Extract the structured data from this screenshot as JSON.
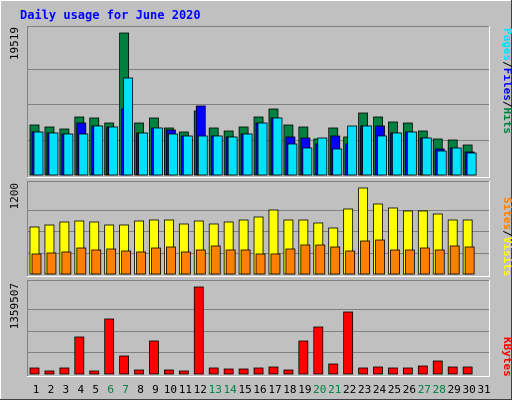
{
  "chart_data": {
    "type": "bar",
    "title": "Daily usage for June 2020",
    "days": [
      "1",
      "2",
      "3",
      "4",
      "5",
      "6",
      "7",
      "8",
      "9",
      "10",
      "11",
      "12",
      "13",
      "14",
      "15",
      "16",
      "17",
      "18",
      "19",
      "20",
      "21",
      "22",
      "23",
      "24",
      "25",
      "26",
      "27",
      "28",
      "29",
      "30",
      "31"
    ],
    "weekend_days": [
      "6",
      "7",
      "13",
      "14",
      "20",
      "21",
      "27",
      "28"
    ],
    "panels": [
      {
        "id": "top",
        "max_label": "19519",
        "ymax": 19519,
        "side_labels": [
          "Pages",
          "Files",
          "Hits"
        ],
        "series": [
          {
            "name": "Hits",
            "color": "#008040",
            "values": [
              6872,
              6648,
              6311,
              7996,
              7776,
              7103,
              19519,
              7108,
              7887,
              6528,
              5872,
              8860,
              6409,
              5982,
              6620,
              7983,
              9096,
              6855,
              6598,
              4939,
              6423,
              5287,
              8476,
              7924,
              7346,
              7106,
              6099,
              4916,
              4850,
              4062,
              null
            ]
          },
          {
            "name": "Files",
            "color": "#0000ff",
            "values": [
              5933,
              5823,
              5599,
              7103,
              6754,
              6534,
              9096,
              5823,
              6528,
              6120,
              5361,
              9544,
              5361,
              5157,
              5669,
              7103,
              7776,
              5174,
              5115,
              4262,
              5361,
              4264,
              6754,
              6753,
              5819,
              5897,
              5051,
              3554,
              3766,
              3221,
              null
            ]
          },
          {
            "name": "Pages",
            "color": "#00e0ff",
            "values": [
              5933,
              5823,
              5599,
              5599,
              6754,
              6534,
              13353,
              5823,
              6528,
              5599,
              5361,
              5361,
              5361,
              5157,
              5669,
              7103,
              7776,
              4262,
              3766,
              5115,
              3554,
              6754,
              6754,
              5299,
              5819,
              5897,
              5051,
              3260,
              3766,
              3054,
              null
            ]
          }
        ]
      },
      {
        "id": "middle",
        "max_label": "1200",
        "ymax": 1200,
        "side_labels": [
          "Sites",
          "Visits"
        ],
        "series": [
          {
            "name": "Visits",
            "color": "#ffff00",
            "values": [
              650,
              690,
              730,
              740,
              720,
              690,
              680,
              740,
              760,
              750,
              700,
              740,
              700,
              720,
              760,
              800,
              890,
              760,
              750,
              710,
              640,
              900,
              1200,
              970,
              920,
              880,
              880,
              840,
              760,
              760,
              null
            ]
          },
          {
            "name": "Sites",
            "color": "#ff8000",
            "values": [
              280,
              290,
              310,
              360,
              330,
              350,
              320,
              310,
              360,
              370,
              310,
              340,
              390,
              330,
              340,
              280,
              280,
              350,
              400,
              400,
              380,
              320,
              460,
              470,
              330,
              330,
              360,
              330,
              390,
              380,
              null
            ]
          }
        ]
      },
      {
        "id": "bottom",
        "max_label": "1359507",
        "ymax": 1359507,
        "side_labels": [
          "KBytes"
        ],
        "series": [
          {
            "name": "KBytes",
            "color": "#ff0000",
            "values": [
              92000,
              51000,
              88000,
              579000,
              52000,
              852000,
              288000,
              62000,
              509000,
              60000,
              50000,
              1359507,
              100000,
              72000,
              76000,
              88000,
              112000,
              60000,
              521000,
              727000,
              152000,
              966000,
              88000,
              105000,
              86000,
              92000,
              128000,
              198000,
              112000,
              108000,
              null
            ]
          }
        ]
      }
    ]
  }
}
